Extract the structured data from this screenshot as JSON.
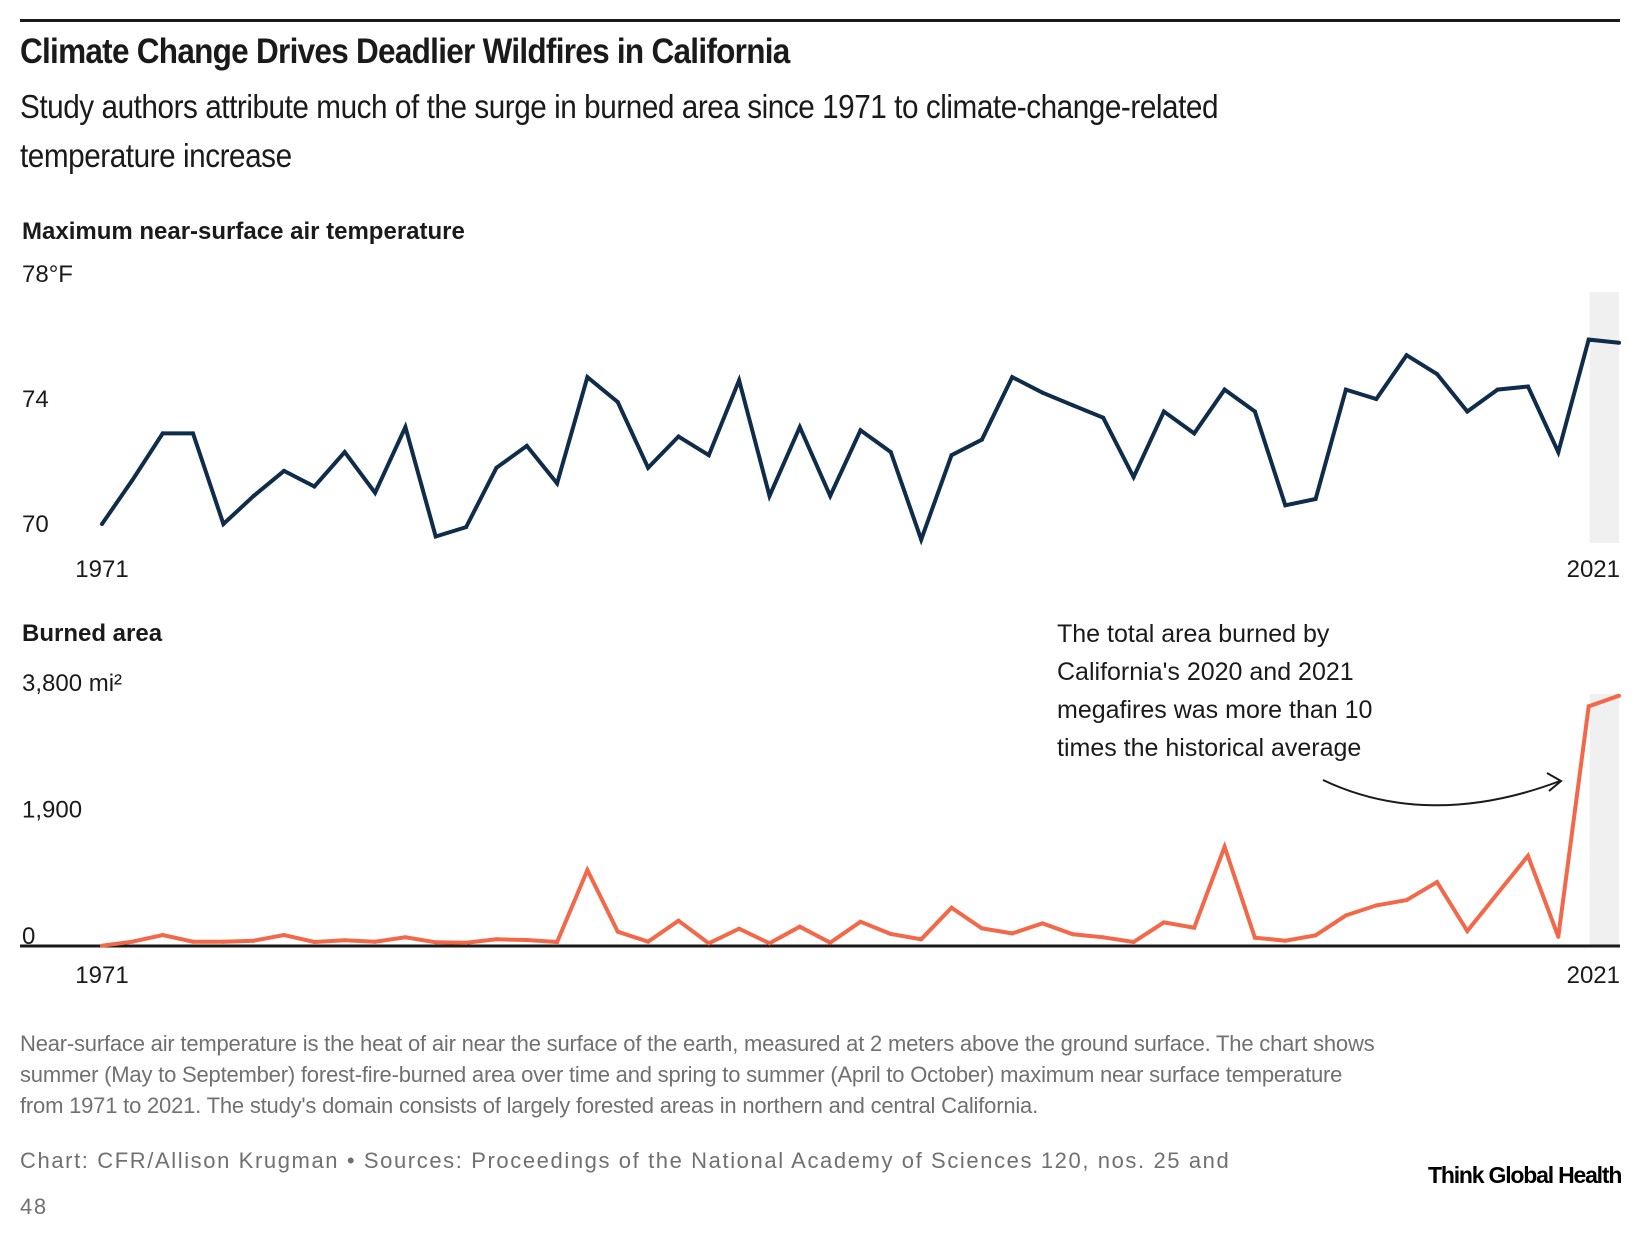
{
  "header": {
    "title": "Climate Change Drives Deadlier Wildfires in California",
    "subtitle_lines": [
      "Study authors attribute much of the surge in burned area since 1971 to climate-change-related",
      "temperature increase"
    ]
  },
  "annotation": {
    "lines": [
      "The total area burned by",
      "California's 2020 and 2021",
      "megafires was more than 10",
      "times the historical average"
    ]
  },
  "footer": {
    "note_lines": [
      "Near-surface air temperature is the heat of air near the surface of the earth, measured at 2 meters above the ground surface. The chart shows",
      "summer (May to September) forest-fire-burned area over time and spring to summer (April to October) maximum near surface temperature",
      "from 1971 to 2021. The study's domain consists of largely forested areas in northern and central California."
    ],
    "credit_lines": [
      "Chart: CFR/Allison Krugman • Sources: Proceedings of the National Academy of Sciences 120, nos. 25 and",
      "48"
    ],
    "brand": "Think Global Health"
  },
  "colors": {
    "temperature_line": "#0f2d4a",
    "burned_line": "#f26849",
    "highlight_band": "#f0f0f0",
    "axis": "#1a1a1a",
    "footnote_text": "#707070"
  },
  "chart_data": [
    {
      "type": "line",
      "title": "Maximum near-surface air temperature",
      "xlabel": "",
      "ylabel": "",
      "y_unit": "°F",
      "ylim": [
        70,
        78
      ],
      "yticks": [
        70,
        74,
        78
      ],
      "ytick_labels": [
        "70",
        "74",
        "78°F"
      ],
      "xlim": [
        1971,
        2021
      ],
      "xtick_labels": [
        "1971",
        "2021"
      ],
      "grid": false,
      "highlight_range": [
        2020,
        2021
      ],
      "series": [
        {
          "name": "Maximum near-surface air temperature",
          "x": [
            1971,
            1972,
            1973,
            1974,
            1975,
            1976,
            1977,
            1978,
            1979,
            1980,
            1981,
            1982,
            1983,
            1984,
            1985,
            1986,
            1987,
            1988,
            1989,
            1990,
            1991,
            1992,
            1993,
            1994,
            1995,
            1996,
            1997,
            1998,
            1999,
            2000,
            2001,
            2002,
            2003,
            2004,
            2005,
            2006,
            2007,
            2008,
            2009,
            2010,
            2011,
            2012,
            2013,
            2014,
            2015,
            2016,
            2017,
            2018,
            2019,
            2020,
            2021
          ],
          "values": [
            70.0,
            71.4,
            72.9,
            72.9,
            70.0,
            70.9,
            71.7,
            71.2,
            72.3,
            71.0,
            73.1,
            69.6,
            69.9,
            71.8,
            72.5,
            71.3,
            74.7,
            73.9,
            71.8,
            72.8,
            72.2,
            74.6,
            70.9,
            73.1,
            70.9,
            73.0,
            72.3,
            69.5,
            72.2,
            72.7,
            74.7,
            74.2,
            73.8,
            73.4,
            71.5,
            73.6,
            72.9,
            74.3,
            73.6,
            70.6,
            70.8,
            74.3,
            74.0,
            75.4,
            74.8,
            73.6,
            74.3,
            74.4,
            72.3,
            75.9,
            75.8
          ]
        }
      ]
    },
    {
      "type": "line",
      "title": "Burned area",
      "xlabel": "",
      "ylabel": "",
      "y_unit": "mi²",
      "ylim": [
        0,
        3800
      ],
      "yticks": [
        0,
        1900,
        3800
      ],
      "ytick_labels": [
        "0",
        "1,900",
        "3,800 mi²"
      ],
      "xlim": [
        1971,
        2021
      ],
      "xtick_labels": [
        "1971",
        "2021"
      ],
      "grid": false,
      "highlight_range": [
        2020,
        2021
      ],
      "annotation": "The total area burned by California's 2020 and 2021 megafires was more than 10 times the historical average",
      "series": [
        {
          "name": "Burned area",
          "x": [
            1971,
            1972,
            1973,
            1974,
            1975,
            1976,
            1977,
            1978,
            1979,
            1980,
            1981,
            1982,
            1983,
            1984,
            1985,
            1986,
            1987,
            1988,
            1989,
            1990,
            1991,
            1992,
            1993,
            1994,
            1995,
            1996,
            1997,
            1998,
            1999,
            2000,
            2001,
            2002,
            2003,
            2004,
            2005,
            2006,
            2007,
            2008,
            2009,
            2010,
            2011,
            2012,
            2013,
            2014,
            2015,
            2016,
            2017,
            2018,
            2019,
            2020,
            2021
          ],
          "values": [
            5,
            65,
            165,
            65,
            65,
            80,
            165,
            60,
            85,
            65,
            130,
            55,
            50,
            100,
            90,
            60,
            1140,
            215,
            65,
            380,
            40,
            260,
            40,
            290,
            50,
            365,
            180,
            100,
            575,
            265,
            190,
            340,
            175,
            130,
            60,
            355,
            275,
            1490,
            125,
            80,
            160,
            460,
            610,
            690,
            960,
            225,
            790,
            1355,
            140,
            3600,
            3760
          ]
        }
      ]
    }
  ]
}
